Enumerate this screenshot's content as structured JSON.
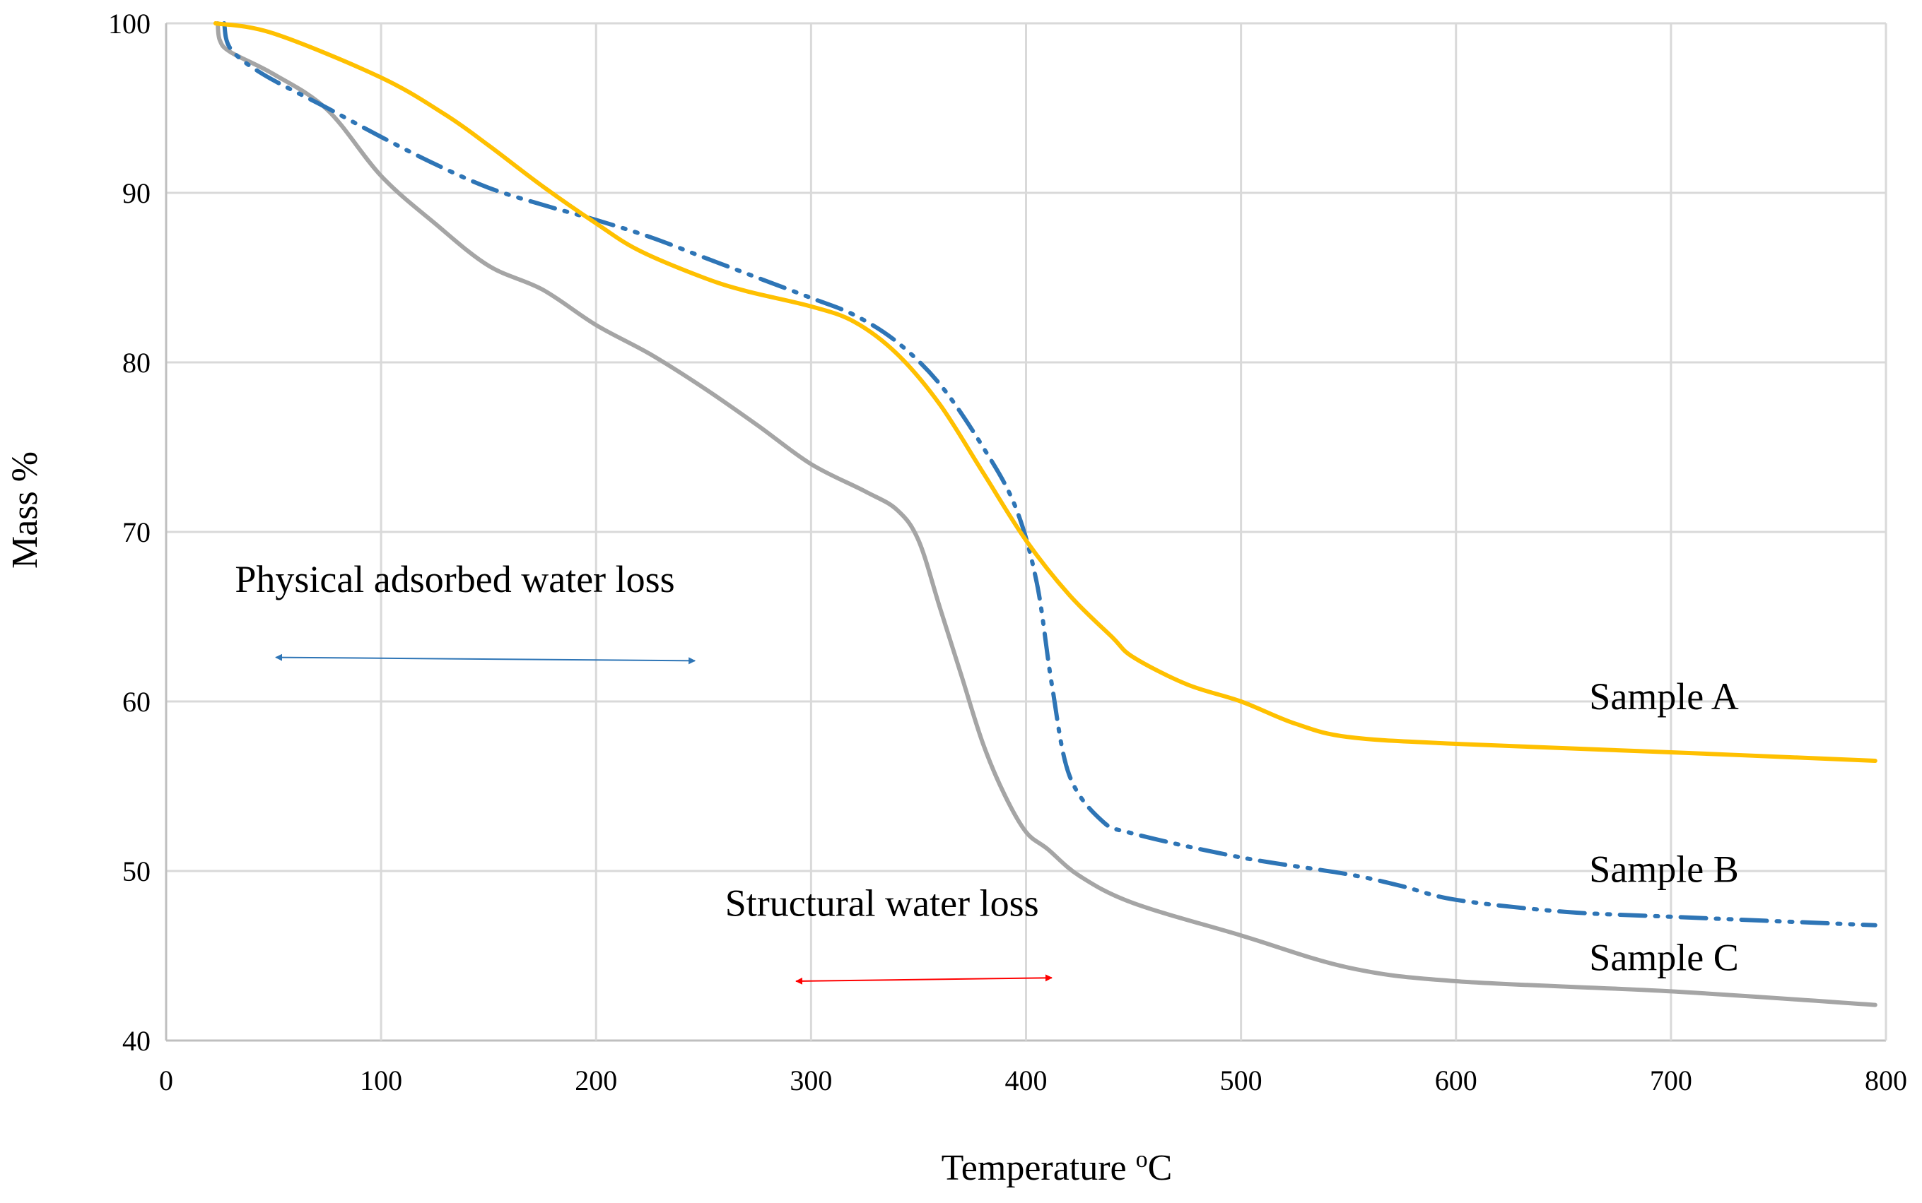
{
  "chart_data": {
    "type": "line",
    "title": "",
    "xlabel": "Temperature ",
    "xlabel_sup": "o",
    "xlabel_suffix": "C",
    "ylabel": "Mass  %",
    "xlim": [
      0,
      800
    ],
    "ylim": [
      40,
      100
    ],
    "x_ticks": [
      0,
      100,
      200,
      300,
      400,
      500,
      600,
      700,
      800
    ],
    "y_ticks": [
      40,
      50,
      60,
      70,
      80,
      90,
      100
    ],
    "grid": true,
    "series": [
      {
        "name": "Sample A",
        "color": "#ffc000",
        "dash": "solid",
        "points": [
          [
            23,
            100
          ],
          [
            50,
            99.4
          ],
          [
            100,
            96.8
          ],
          [
            130,
            94.6
          ],
          [
            150,
            92.8
          ],
          [
            175,
            90.4
          ],
          [
            200,
            88.2
          ],
          [
            220,
            86.6
          ],
          [
            250,
            85
          ],
          [
            270,
            84.2
          ],
          [
            300,
            83.3
          ],
          [
            320,
            82.4
          ],
          [
            340,
            80.5
          ],
          [
            360,
            77.5
          ],
          [
            380,
            73.5
          ],
          [
            400,
            69.5
          ],
          [
            420,
            66.3
          ],
          [
            440,
            63.8
          ],
          [
            450,
            62.6
          ],
          [
            475,
            61
          ],
          [
            500,
            60
          ],
          [
            525,
            58.7
          ],
          [
            550,
            57.9
          ],
          [
            600,
            57.5
          ],
          [
            700,
            57
          ],
          [
            795,
            56.5
          ]
        ]
      },
      {
        "name": "Sample B",
        "color": "#2e75b6",
        "dash": "dashdot",
        "points": [
          [
            27,
            100
          ],
          [
            30,
            98.5
          ],
          [
            45,
            97
          ],
          [
            75,
            95
          ],
          [
            100,
            93.3
          ],
          [
            125,
            91.7
          ],
          [
            150,
            90.3
          ],
          [
            175,
            89.3
          ],
          [
            200,
            88.4
          ],
          [
            225,
            87.4
          ],
          [
            250,
            86.2
          ],
          [
            275,
            85
          ],
          [
            300,
            83.8
          ],
          [
            320,
            82.8
          ],
          [
            340,
            81.2
          ],
          [
            360,
            78.7
          ],
          [
            380,
            75
          ],
          [
            395,
            71.5
          ],
          [
            405,
            67
          ],
          [
            412,
            61
          ],
          [
            420,
            55.7
          ],
          [
            435,
            53
          ],
          [
            450,
            52.2
          ],
          [
            500,
            50.8
          ],
          [
            550,
            49.8
          ],
          [
            575,
            49.1
          ],
          [
            600,
            48.3
          ],
          [
            650,
            47.6
          ],
          [
            700,
            47.3
          ],
          [
            795,
            46.8
          ]
        ]
      },
      {
        "name": "Sample C",
        "color": "#a5a5a5",
        "dash": "solid",
        "points": [
          [
            24,
            100
          ],
          [
            25,
            99
          ],
          [
            30,
            98.3
          ],
          [
            50,
            97
          ],
          [
            75,
            94.9
          ],
          [
            100,
            91
          ],
          [
            125,
            88.2
          ],
          [
            150,
            85.7
          ],
          [
            175,
            84.3
          ],
          [
            200,
            82.2
          ],
          [
            225,
            80.5
          ],
          [
            250,
            78.5
          ],
          [
            275,
            76.3
          ],
          [
            300,
            74
          ],
          [
            325,
            72.4
          ],
          [
            340,
            71.3
          ],
          [
            350,
            69.5
          ],
          [
            360,
            65.5
          ],
          [
            370,
            61.5
          ],
          [
            380,
            57.5
          ],
          [
            390,
            54.5
          ],
          [
            400,
            52.3
          ],
          [
            410,
            51.3
          ],
          [
            425,
            49.7
          ],
          [
            450,
            48.1
          ],
          [
            500,
            46.2
          ],
          [
            550,
            44.3
          ],
          [
            600,
            43.5
          ],
          [
            700,
            42.9
          ],
          [
            795,
            42.1
          ]
        ]
      }
    ],
    "series_labels": [
      {
        "text": "Sample A",
        "x": 662,
        "y": 60.3
      },
      {
        "text": "Sample B",
        "x": 662,
        "y": 50.1
      },
      {
        "text": "Sample C",
        "x": 662,
        "y": 44.9
      }
    ],
    "annotations": [
      {
        "text": "Physical adsorbed water loss",
        "text_x": 32,
        "text_y": 67.2,
        "color": "#2e75b6",
        "arrow_from": [
          51,
          62.6
        ],
        "arrow_to": [
          246,
          62.4
        ]
      },
      {
        "text": "Structural water loss",
        "text_x": 260,
        "text_y": 48.1,
        "color": "#ff0000",
        "arrow_from": [
          293,
          43.5
        ],
        "arrow_to": [
          412,
          43.7
        ]
      }
    ]
  }
}
